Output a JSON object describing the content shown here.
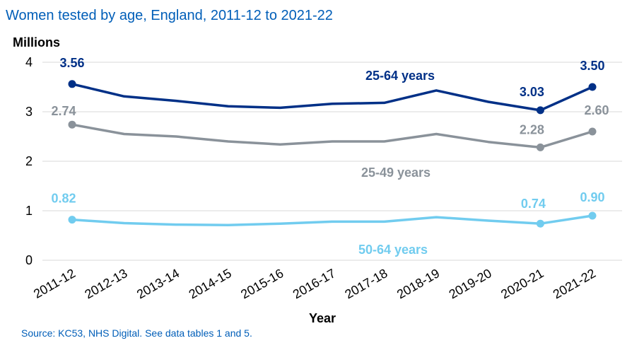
{
  "colors": {
    "title": "#005eb8",
    "source": "#005eb8",
    "grid": "#d9d9d9",
    "series_dark": "#003087",
    "series_grey": "#8a929a",
    "series_light": "#71ccef"
  },
  "chart_data": {
    "type": "line",
    "title": "Women tested by age, England,  2011-12 to 2021-22",
    "ylabel": "Millions",
    "xlabel": "Year",
    "ylim": [
      0,
      4
    ],
    "yticks": [
      "0",
      "1",
      "2",
      "3",
      "4"
    ],
    "grid": "horizontal",
    "categories": [
      "2011-12",
      "2012-13",
      "2013-14",
      "2014-15",
      "2015-16",
      "2016-17",
      "2017-18",
      "2018-19",
      "2019-20",
      "2020-21",
      "2021-22"
    ],
    "series": [
      {
        "name": "25-64 years",
        "color": "#003087",
        "values": [
          3.56,
          3.31,
          3.22,
          3.11,
          3.08,
          3.16,
          3.18,
          3.43,
          3.2,
          3.03,
          3.5
        ],
        "labels": [
          "3.56",
          "",
          "",
          "",
          "",
          "",
          "",
          "",
          "",
          "3.03",
          "3.50"
        ]
      },
      {
        "name": "25-49 years",
        "color": "#8a929a",
        "values": [
          2.74,
          2.55,
          2.5,
          2.4,
          2.34,
          2.4,
          2.4,
          2.55,
          2.39,
          2.28,
          2.6
        ],
        "labels": [
          "2.74",
          "",
          "",
          "",
          "",
          "",
          "",
          "",
          "",
          "2.28",
          "2.60"
        ]
      },
      {
        "name": "50-64 years",
        "color": "#71ccef",
        "values": [
          0.82,
          0.75,
          0.72,
          0.71,
          0.74,
          0.78,
          0.78,
          0.87,
          0.8,
          0.74,
          0.9
        ],
        "labels": [
          "0.82",
          "",
          "",
          "",
          "",
          "",
          "",
          "",
          "",
          "0.74",
          "0.90"
        ]
      }
    ],
    "markers_at": [
      0,
      9,
      10
    ]
  },
  "source": "Source: KC53, NHS Digital. See data tables 1 and 5."
}
